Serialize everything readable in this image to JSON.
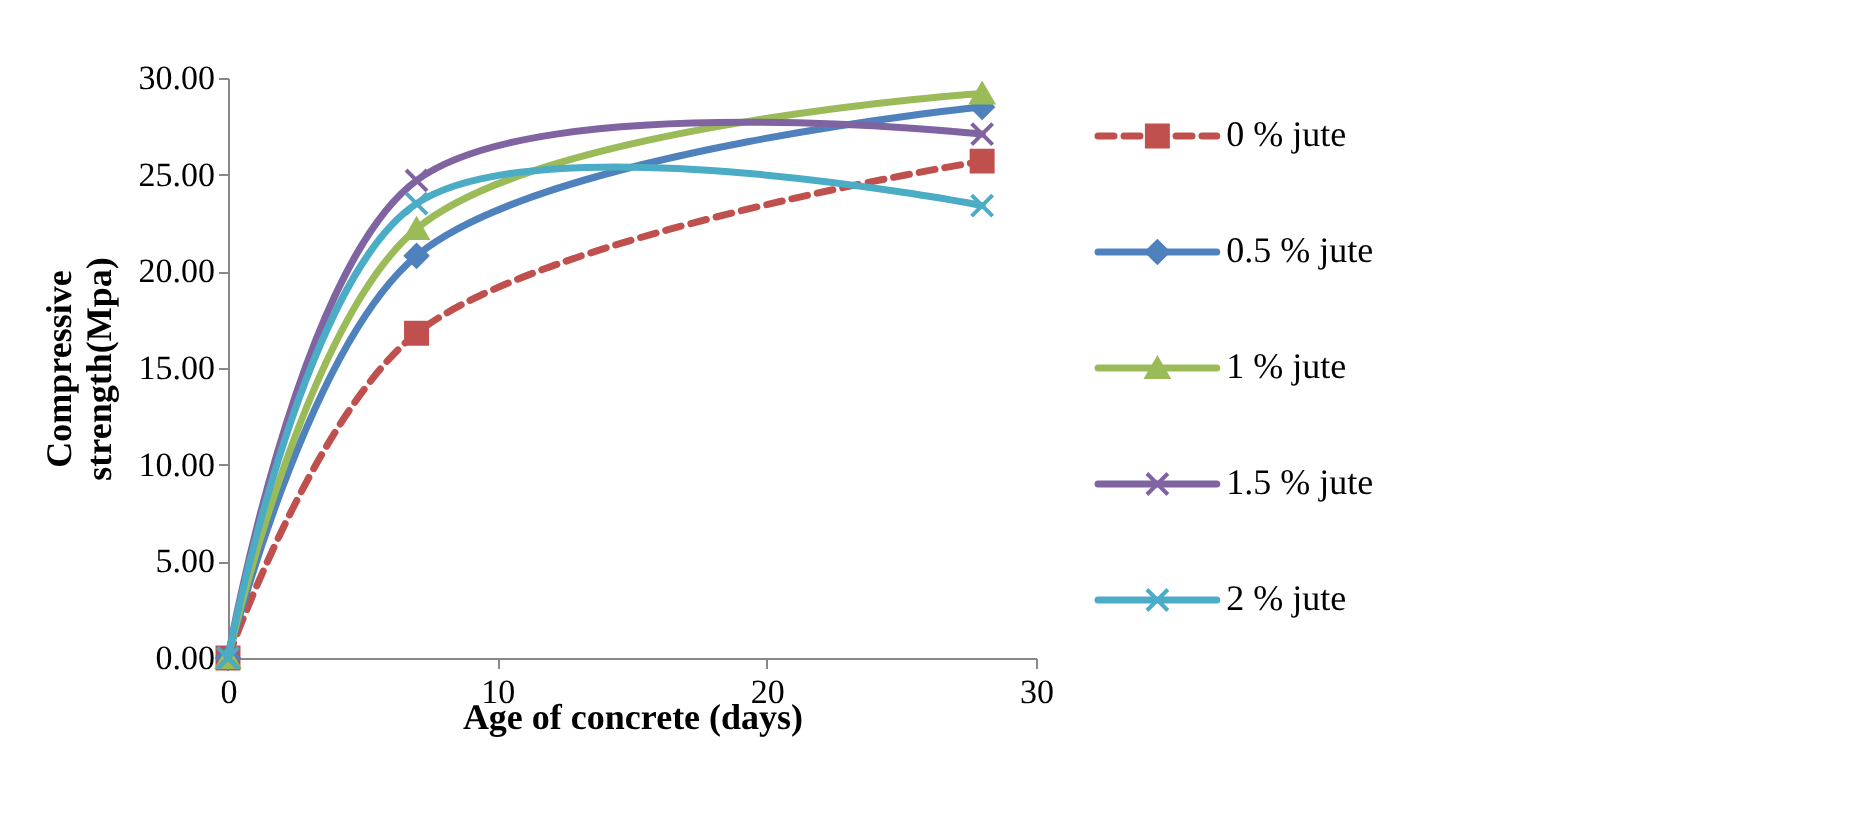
{
  "chart_data": {
    "type": "line",
    "xlabel": "Age of concrete (days)",
    "ylabel": "Compressive strength(Mpa)",
    "x": [
      0,
      7,
      28
    ],
    "xlim": [
      0,
      30
    ],
    "xticks": [
      0,
      10,
      20,
      30
    ],
    "ylim": [
      0,
      30
    ],
    "yticks": [
      {
        "value": 0,
        "label": "0.00"
      },
      {
        "value": 5,
        "label": "5.00"
      },
      {
        "value": 10,
        "label": "10.00"
      },
      {
        "value": 15,
        "label": "15.00"
      },
      {
        "value": 20,
        "label": "20.00"
      },
      {
        "value": 25,
        "label": "25.00"
      },
      {
        "value": 30,
        "label": "30.00"
      }
    ],
    "grid": false,
    "legend": "right",
    "series": [
      {
        "name": "0  % jute",
        "color": "#c0504d",
        "marker": "square",
        "line_style": "dashed",
        "values": [
          0,
          16.8,
          25.7
        ]
      },
      {
        "name": "0.5  % jute",
        "color": "#4f81bd",
        "marker": "diamond",
        "line_style": "solid",
        "values": [
          0,
          20.8,
          28.5
        ]
      },
      {
        "name": "1  % jute",
        "color": "#9bbb59",
        "marker": "triangle",
        "line_style": "solid",
        "values": [
          0,
          22.2,
          29.2
        ]
      },
      {
        "name": "1.5 % jute",
        "color": "#8064a2",
        "marker": "cross",
        "line_style": "solid",
        "values": [
          0,
          24.7,
          27.1
        ]
      },
      {
        "name": "2 % jute",
        "color": "#4bacc6",
        "marker": "cross",
        "line_style": "solid",
        "values": [
          0,
          23.5,
          23.4
        ]
      }
    ]
  }
}
